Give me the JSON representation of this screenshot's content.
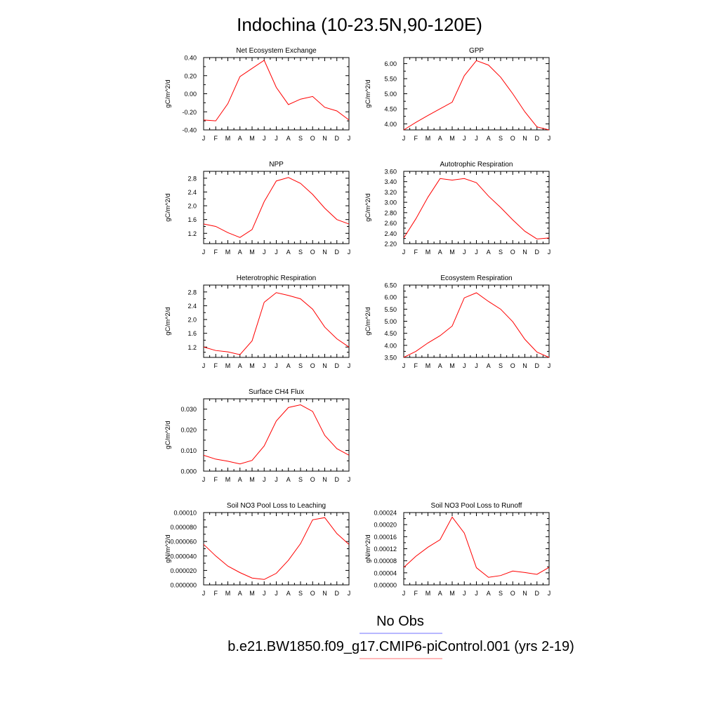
{
  "figure": {
    "title": "Indochina (10-23.5N,90-120E)",
    "legend": {
      "entries": [
        {
          "label": "No Obs",
          "color": "#0000ff"
        },
        {
          "label": "b.e21.BW1850.f09_g17.CMIP6-piControl.001 (yrs 2-19)",
          "color": "#ff0000"
        }
      ]
    }
  },
  "chart_data": [
    {
      "type": "line",
      "title": "Net Ecosystem Exchange",
      "ylabel": "gC/m^2/d",
      "categories": [
        "J",
        "F",
        "M",
        "A",
        "M",
        "J",
        "J",
        "A",
        "S",
        "O",
        "N",
        "D",
        "J"
      ],
      "ylim": [
        -0.4,
        0.4
      ],
      "yticks": [
        -0.4,
        -0.2,
        0.0,
        0.2,
        0.4
      ],
      "yticklabels": [
        "-0.40",
        "-0.20",
        "0.00",
        "0.20",
        "0.40"
      ],
      "series": [
        {
          "color": "#ff0000",
          "values": [
            -0.29,
            -0.3,
            -0.11,
            0.19,
            0.28,
            0.37,
            0.07,
            -0.12,
            -0.06,
            -0.03,
            -0.15,
            -0.19,
            -0.29
          ]
        }
      ]
    },
    {
      "type": "line",
      "title": "GPP",
      "ylabel": "gC/m^2/d",
      "categories": [
        "J",
        "F",
        "M",
        "A",
        "M",
        "J",
        "J",
        "A",
        "S",
        "O",
        "N",
        "D",
        "J"
      ],
      "ylim": [
        3.8,
        6.2
      ],
      "yticks": [
        4.0,
        4.5,
        5.0,
        5.5,
        6.0
      ],
      "yticklabels": [
        "4.00",
        "4.50",
        "5.00",
        "5.50",
        "6.00"
      ],
      "series": [
        {
          "color": "#ff0000",
          "values": [
            3.8,
            4.05,
            4.28,
            4.5,
            4.72,
            5.6,
            6.1,
            5.95,
            5.55,
            5.0,
            4.4,
            3.9,
            3.8
          ]
        }
      ]
    },
    {
      "type": "line",
      "title": "NPP",
      "ylabel": "gC/m^2/d",
      "categories": [
        "J",
        "F",
        "M",
        "A",
        "M",
        "J",
        "J",
        "A",
        "S",
        "O",
        "N",
        "D",
        "J"
      ],
      "ylim": [
        0.9,
        3.0
      ],
      "yticks": [
        1.2,
        1.6,
        2.0,
        2.4,
        2.8
      ],
      "yticklabels": [
        "1.2",
        "1.6",
        "2.0",
        "2.4",
        "2.8"
      ],
      "series": [
        {
          "color": "#ff0000",
          "values": [
            1.47,
            1.4,
            1.22,
            1.08,
            1.31,
            2.12,
            2.72,
            2.82,
            2.65,
            2.33,
            1.93,
            1.6,
            1.47
          ]
        }
      ]
    },
    {
      "type": "line",
      "title": "Autotrophic Respiration",
      "ylabel": "gC/m^2/d",
      "categories": [
        "J",
        "F",
        "M",
        "A",
        "M",
        "J",
        "J",
        "A",
        "S",
        "O",
        "N",
        "D",
        "J"
      ],
      "ylim": [
        2.2,
        3.6
      ],
      "yticks": [
        2.2,
        2.4,
        2.6,
        2.8,
        3.0,
        3.2,
        3.4,
        3.6
      ],
      "yticklabels": [
        "2.20",
        "2.40",
        "2.60",
        "2.80",
        "3.00",
        "3.20",
        "3.40",
        "3.60"
      ],
      "series": [
        {
          "color": "#ff0000",
          "values": [
            2.31,
            2.68,
            3.1,
            3.46,
            3.43,
            3.46,
            3.38,
            3.12,
            2.9,
            2.66,
            2.44,
            2.29,
            2.31
          ]
        }
      ]
    },
    {
      "type": "line",
      "title": "Heterotrophic Respiration",
      "ylabel": "gC/m^2/d",
      "categories": [
        "J",
        "F",
        "M",
        "A",
        "M",
        "J",
        "J",
        "A",
        "S",
        "O",
        "N",
        "D",
        "J"
      ],
      "ylim": [
        0.9,
        3.0
      ],
      "yticks": [
        1.2,
        1.6,
        2.0,
        2.4,
        2.8
      ],
      "yticklabels": [
        "1.2",
        "1.6",
        "2.0",
        "2.4",
        "2.8"
      ],
      "series": [
        {
          "color": "#ff0000",
          "values": [
            1.2,
            1.1,
            1.06,
            0.98,
            1.38,
            2.5,
            2.78,
            2.7,
            2.6,
            2.3,
            1.78,
            1.44,
            1.2
          ]
        }
      ]
    },
    {
      "type": "line",
      "title": "Ecosystem Respiration",
      "ylabel": "gC/m^2/d",
      "categories": [
        "J",
        "F",
        "M",
        "A",
        "M",
        "J",
        "J",
        "A",
        "S",
        "O",
        "N",
        "D",
        "J"
      ],
      "ylim": [
        3.5,
        6.5
      ],
      "yticks": [
        3.5,
        4.0,
        4.5,
        5.0,
        5.5,
        6.0,
        6.5
      ],
      "yticklabels": [
        "3.50",
        "4.00",
        "4.50",
        "5.00",
        "5.50",
        "6.00",
        "6.50"
      ],
      "series": [
        {
          "color": "#ff0000",
          "values": [
            3.5,
            3.75,
            4.1,
            4.4,
            4.8,
            5.97,
            6.18,
            5.82,
            5.5,
            4.98,
            4.25,
            3.72,
            3.5
          ]
        }
      ]
    },
    {
      "type": "line",
      "title": "Surface CH4 Flux",
      "ylabel": "gC/m^2/d",
      "categories": [
        "J",
        "F",
        "M",
        "A",
        "M",
        "J",
        "J",
        "A",
        "S",
        "O",
        "N",
        "D",
        "J"
      ],
      "ylim": [
        0.0,
        0.035
      ],
      "yticks": [
        0.0,
        0.01,
        0.02,
        0.03
      ],
      "yticklabels": [
        "0.000",
        "0.010",
        "0.020",
        "0.030"
      ],
      "series": [
        {
          "color": "#ff0000",
          "values": [
            0.0077,
            0.0058,
            0.0048,
            0.0035,
            0.0052,
            0.0122,
            0.0243,
            0.0308,
            0.0321,
            0.0289,
            0.0173,
            0.0109,
            0.0077
          ]
        }
      ]
    },
    null,
    {
      "type": "line",
      "title": "Soil NO3 Pool Loss to Leaching",
      "ylabel": "gN/m^2/d",
      "categories": [
        "J",
        "F",
        "M",
        "A",
        "M",
        "J",
        "J",
        "A",
        "S",
        "O",
        "N",
        "D",
        "J"
      ],
      "ylim": [
        0.0,
        0.0001
      ],
      "yticks": [
        0.0,
        2e-05,
        4e-05,
        6e-05,
        8e-05,
        0.0001
      ],
      "yticklabels": [
        "0.000000",
        "0.000020",
        "0.000040",
        "0.000060",
        "0.000080",
        "0.00010"
      ],
      "series": [
        {
          "color": "#ff0000",
          "values": [
            5.6e-05,
            4e-05,
            2.6e-05,
            1.7e-05,
            9.5e-06,
            7.5e-06,
            1.6e-05,
            3.4e-05,
            5.7e-05,
            9e-05,
            9.3e-05,
            7.1e-05,
            5.6e-05
          ]
        }
      ]
    },
    {
      "type": "line",
      "title": "Soil NO3 Pool Loss to Runoff",
      "ylabel": "gN/m^2/d",
      "categories": [
        "J",
        "F",
        "M",
        "A",
        "M",
        "J",
        "J",
        "A",
        "S",
        "O",
        "N",
        "D",
        "J"
      ],
      "ylim": [
        0.0,
        0.00024
      ],
      "yticks": [
        0.0,
        4e-05,
        8e-05,
        0.00012,
        0.00016,
        0.0002,
        0.00024
      ],
      "yticklabels": [
        "0.00000",
        "0.00004",
        "0.00008",
        "0.00012",
        "0.00016",
        "0.00020",
        "0.00024"
      ],
      "series": [
        {
          "color": "#ff0000",
          "values": [
            5.8e-05,
            9.5e-05,
            0.000125,
            0.00015,
            0.000225,
            0.000172,
            5.7e-05,
            2.5e-05,
            3.1e-05,
            4.6e-05,
            4.1e-05,
            3.5e-05,
            5.8e-05
          ]
        }
      ]
    }
  ]
}
